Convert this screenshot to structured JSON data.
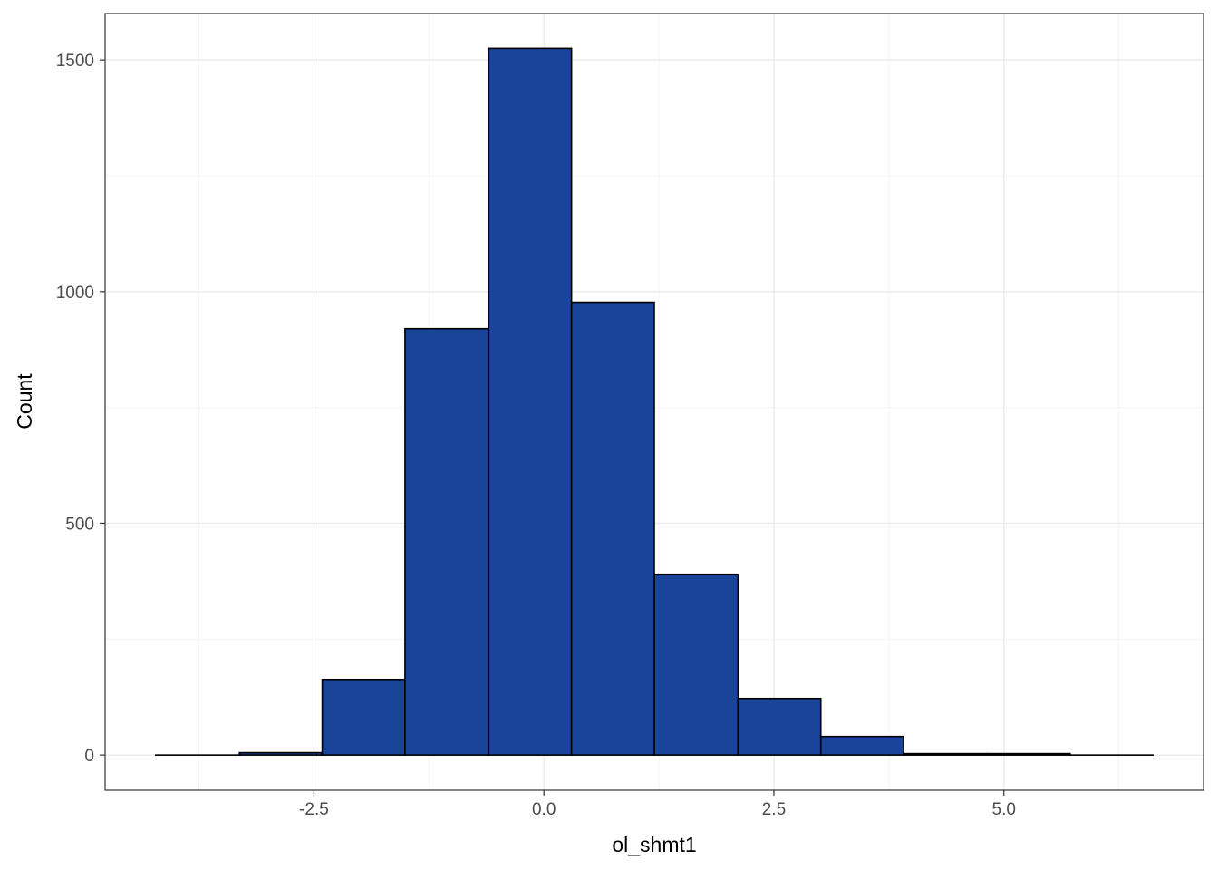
{
  "chart_data": {
    "type": "bar",
    "title": "",
    "xlabel": "ol_shmt1",
    "ylabel": "Count",
    "bins": [
      {
        "x0": -4.22,
        "x1": -3.31,
        "count": 0
      },
      {
        "x0": -3.31,
        "x1": -2.41,
        "count": 5
      },
      {
        "x0": -2.41,
        "x1": -1.51,
        "count": 163
      },
      {
        "x0": -1.51,
        "x1": -0.6,
        "count": 920
      },
      {
        "x0": -0.6,
        "x1": 0.3,
        "count": 1525
      },
      {
        "x0": 0.3,
        "x1": 1.2,
        "count": 977
      },
      {
        "x0": 1.2,
        "x1": 2.11,
        "count": 390
      },
      {
        "x0": 2.11,
        "x1": 3.01,
        "count": 122
      },
      {
        "x0": 3.01,
        "x1": 3.91,
        "count": 40
      },
      {
        "x0": 3.91,
        "x1": 4.82,
        "count": 3
      },
      {
        "x0": 4.82,
        "x1": 5.72,
        "count": 3
      },
      {
        "x0": 5.72,
        "x1": 6.62,
        "count": 0
      }
    ],
    "xlim": [
      -4.77,
      7.17
    ],
    "ylim": [
      -76,
      1600
    ],
    "x_ticks": [
      {
        "value": -2.5,
        "label": "-2.5"
      },
      {
        "value": 0.0,
        "label": "0.0"
      },
      {
        "value": 2.5,
        "label": "2.5"
      },
      {
        "value": 5.0,
        "label": "5.0"
      }
    ],
    "y_ticks": [
      {
        "value": 0,
        "label": "0"
      },
      {
        "value": 500,
        "label": "500"
      },
      {
        "value": 1000,
        "label": "1000"
      },
      {
        "value": 1500,
        "label": "1500"
      }
    ],
    "grid": true,
    "legend": "none",
    "colors": {
      "bar_fill": "#1a4499",
      "bar_stroke": "#000000",
      "grid_major": "#ebebeb",
      "grid_minor": "#f4f4f4",
      "panel_border": "#333333",
      "tick_label": "#4d4d4d"
    }
  }
}
